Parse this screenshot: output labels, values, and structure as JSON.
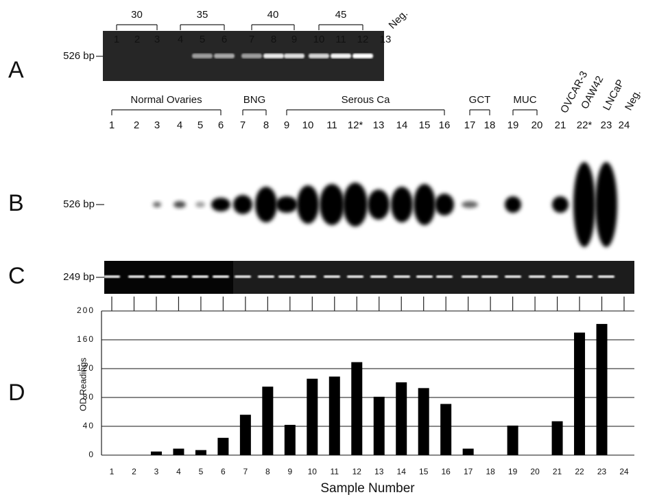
{
  "panel_a": {
    "letter": "A",
    "size_label": "526 bp",
    "group_labels": [
      "30",
      "35",
      "40",
      "45"
    ],
    "lane_labels": [
      "1",
      "2",
      "3",
      "4",
      "5",
      "6",
      "7",
      "8",
      "9",
      "10",
      "11",
      "12",
      "13"
    ],
    "neg_label": "Neg."
  },
  "panel_b": {
    "letter": "B",
    "size_label": "526 bp",
    "group_labels": [
      "Normal Ovaries",
      "BNG",
      "Serous Ca",
      "GCT",
      "MUC"
    ],
    "cell_line_labels": [
      "OVCAR-3",
      "OAW42",
      "LNCaP",
      "Neg."
    ],
    "lane_labels": [
      "1",
      "2",
      "3",
      "4",
      "5",
      "6",
      "7",
      "8",
      "9",
      "10",
      "11",
      "12*",
      "13",
      "14",
      "15",
      "16",
      "17",
      "18",
      "19",
      "20",
      "21",
      "22*",
      "23",
      "24"
    ]
  },
  "panel_c": {
    "letter": "C",
    "size_label": "249 bp"
  },
  "chart_data": {
    "type": "bar",
    "panel_letter": "D",
    "ylabel": "OD Readings",
    "xlabel": "Sample Number",
    "categories": [
      "1",
      "2",
      "3",
      "4",
      "5",
      "6",
      "7",
      "8",
      "9",
      "10",
      "11",
      "12",
      "13",
      "14",
      "15",
      "16",
      "17",
      "18",
      "19",
      "20",
      "21",
      "22",
      "23",
      "24"
    ],
    "values": [
      0,
      0,
      5,
      9,
      7,
      24,
      56,
      95,
      42,
      106,
      109,
      129,
      81,
      101,
      93,
      71,
      9,
      0,
      41,
      0,
      47,
      170,
      182,
      0
    ],
    "color": "#000000",
    "ylim": [
      0,
      200
    ],
    "yticks": [
      0,
      40,
      80,
      120,
      160,
      200
    ],
    "grid": true
  }
}
